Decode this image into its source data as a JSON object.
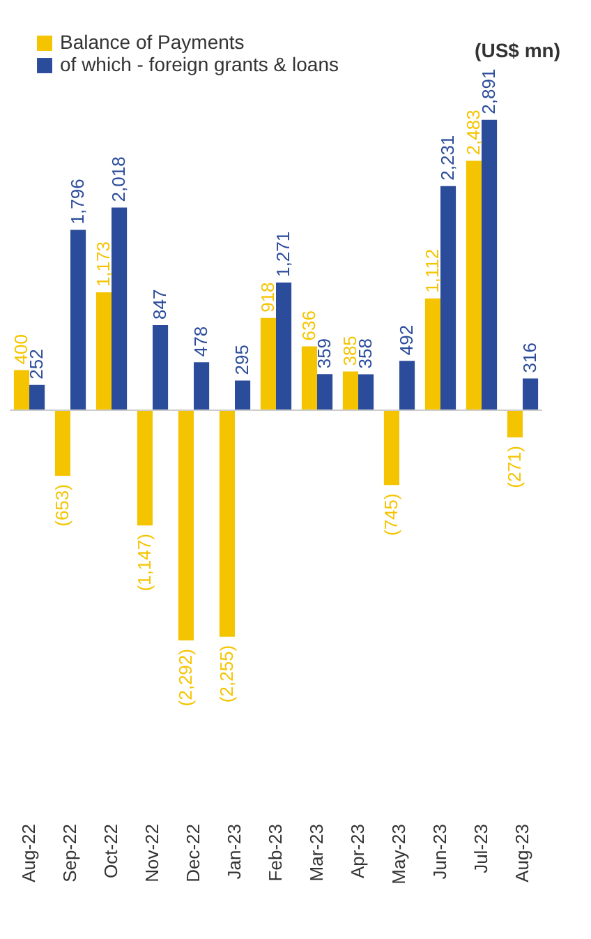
{
  "chart_data": {
    "type": "bar",
    "categories": [
      "Aug-22",
      "Sep-22",
      "Oct-22",
      "Nov-22",
      "Dec-22",
      "Jan-23",
      "Feb-23",
      "Mar-23",
      "Apr-23",
      "May-23",
      "Jun-23",
      "Jul-23",
      "Aug-23"
    ],
    "series": [
      {
        "name": "Balance of Payments",
        "color": "#f5c400",
        "values": [
          400,
          -653,
          1173,
          -1147,
          -2292,
          -2255,
          918,
          636,
          385,
          -745,
          1112,
          2483,
          -271
        ],
        "value_labels": [
          "400",
          "(653)",
          "1,173",
          "(1,147)",
          "(2,292)",
          "(2,255)",
          "918",
          "636",
          "385",
          "(745)",
          "1,112",
          "2,483",
          "(271)"
        ]
      },
      {
        "name": "of which - foreign grants & loans",
        "color": "#2b4c9b",
        "values": [
          252,
          1796,
          2018,
          847,
          478,
          295,
          1271,
          359,
          358,
          492,
          2231,
          2891,
          316
        ],
        "value_labels": [
          "252",
          "1,796",
          "2,018",
          "847",
          "478",
          "295",
          "1,271",
          "359",
          "358",
          "492",
          "2,231",
          "2,891",
          "316"
        ]
      }
    ],
    "annotations": [
      "(US$ mn)"
    ],
    "legend": "top left",
    "grid": false
  }
}
